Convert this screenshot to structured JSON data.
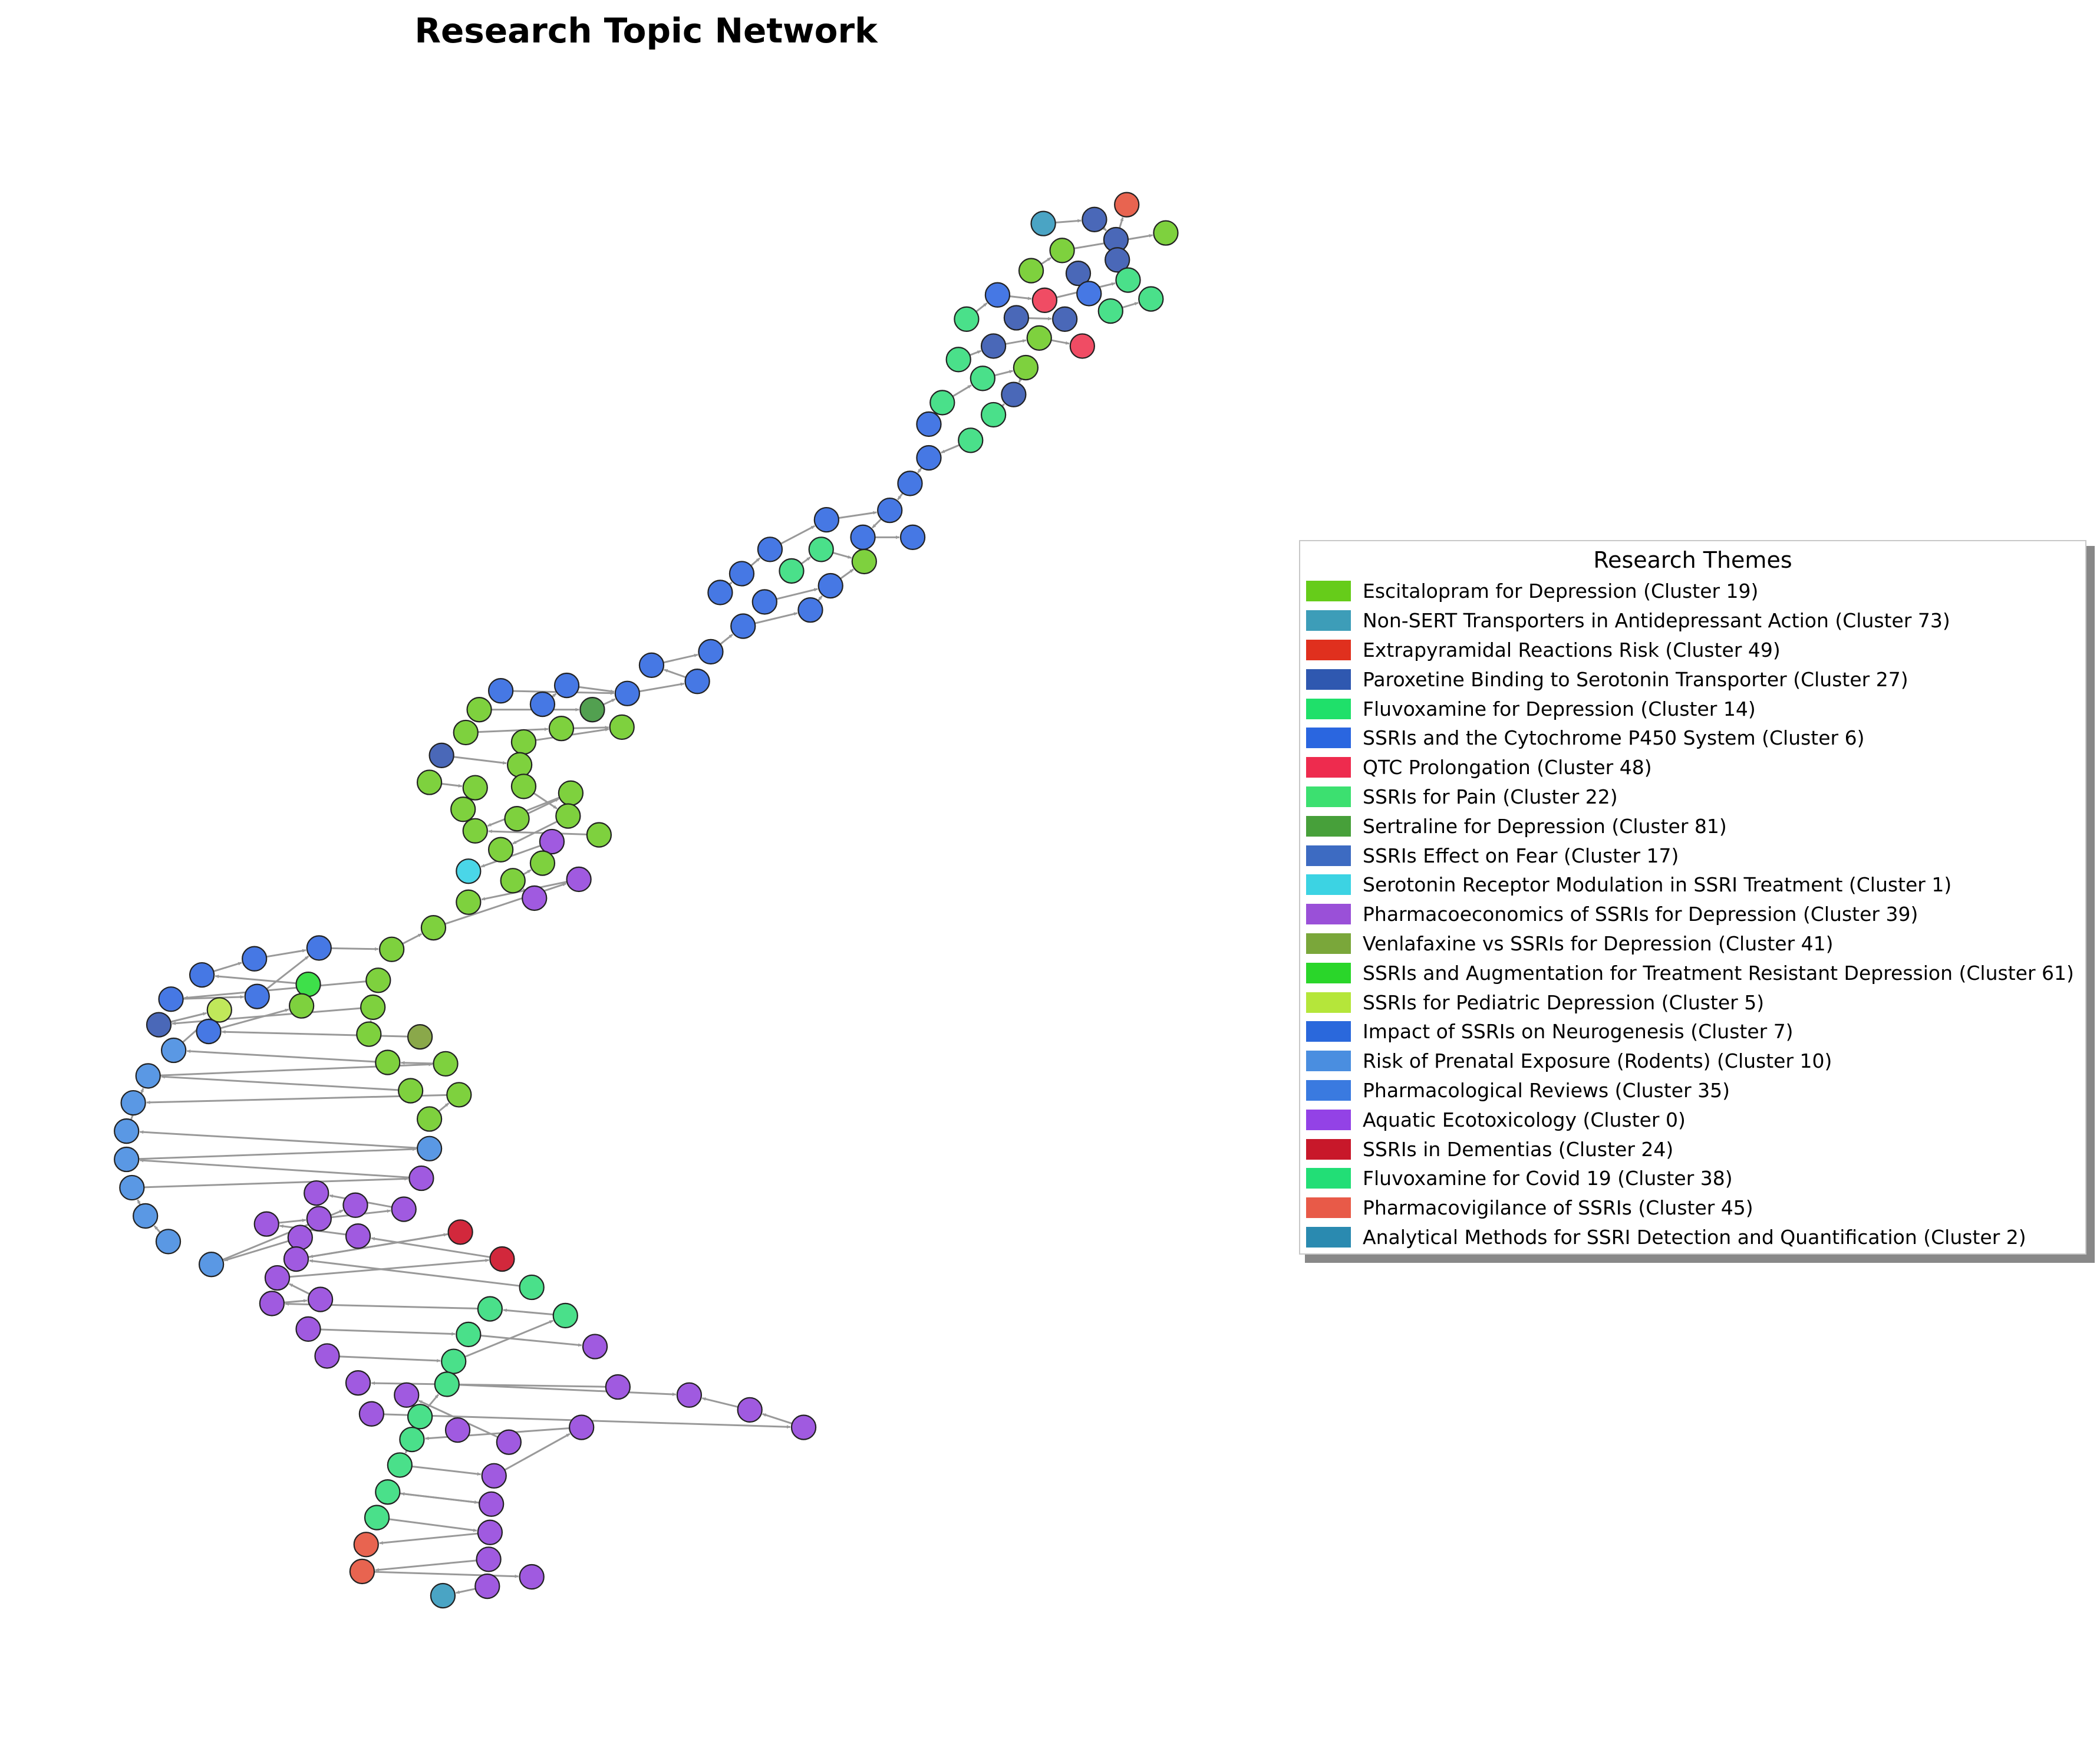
{
  "title": "Research Topic Network",
  "legend": {
    "title": "Research Themes",
    "items": [
      {
        "label": "Escitalopram for Depression (Cluster 19)",
        "color": "#66cc1a"
      },
      {
        "label": "Non-SERT Transporters in Antidepressant Action (Cluster 73)",
        "color": "#3d9db8"
      },
      {
        "label": "Extrapyramidal Reactions Risk (Cluster 49)",
        "color": "#e0301e"
      },
      {
        "label": "Paroxetine Binding to Serotonin Transporter (Cluster 27)",
        "color": "#2f58b0"
      },
      {
        "label": "Fluvoxamine for Depression (Cluster 14)",
        "color": "#1fe06a"
      },
      {
        "label": "SSRIs and the Cytochrome P450 System (Cluster 6)",
        "color": "#2a66e0"
      },
      {
        "label": "QTC Prolongation (Cluster 48)",
        "color": "#ee2b4e"
      },
      {
        "label": "SSRIs for Pain (Cluster 22)",
        "color": "#3ce070"
      },
      {
        "label": "Sertraline for Depression (Cluster 81)",
        "color": "#47a03a"
      },
      {
        "label": "SSRIs Effect on Fear (Cluster 17)",
        "color": "#3d6bc2"
      },
      {
        "label": "Serotonin Receptor Modulation in SSRI Treatment (Cluster 1)",
        "color": "#3cd3e3"
      },
      {
        "label": "Pharmacoeconomics of SSRIs for Depression (Cluster 39)",
        "color": "#9a50d8"
      },
      {
        "label": "Venlafaxine vs SSRIs for Depression (Cluster 41)",
        "color": "#7aa73a"
      },
      {
        "label": "SSRIs and Augmentation for Treatment Resistant Depression (Cluster 61)",
        "color": "#2ad62a"
      },
      {
        "label": "SSRIs for Pediatric Depression (Cluster 5)",
        "color": "#b5e63a"
      },
      {
        "label": "Impact of SSRIs on Neurogenesis (Cluster 7)",
        "color": "#2a68dc"
      },
      {
        "label": "Risk of Prenatal Exposure (Rodents) (Cluster 10)",
        "color": "#4a8ee0"
      },
      {
        "label": "Pharmacological Reviews (Cluster 35)",
        "color": "#3a7ae0"
      },
      {
        "label": "Aquatic Ecotoxicology (Cluster 0)",
        "color": "#9342e6"
      },
      {
        "label": "SSRIs in Dementias (Cluster 24)",
        "color": "#c8182a"
      },
      {
        "label": "Fluvoxamine for Covid 19 (Cluster 38)",
        "color": "#22de76"
      },
      {
        "label": "Pharmacovigilance of SSRIs (Cluster 45)",
        "color": "#e85a48"
      },
      {
        "label": "Analytical Methods for SSRI Detection and Quantification (Cluster 2)",
        "color": "#2a8ab0"
      }
    ]
  },
  "network": {
    "node_colors": {
      "lime": "#7ed13e",
      "blue": "#4678e4",
      "lightblue": "#5a98e4",
      "steel": "#4a68b8",
      "green": "#4ae08a",
      "purple": "#a05ae0",
      "red": "#f04c64",
      "darkred": "#d2283c",
      "orange": "#e86450",
      "teal": "#4aa4c4",
      "cyan": "#4ad6e8",
      "darkgreen": "#52a050",
      "olive": "#8aa84a",
      "yellowgreen": "#c0e85a",
      "brightgreen": "#3ee04a",
      "edge": "#999999"
    }
  }
}
